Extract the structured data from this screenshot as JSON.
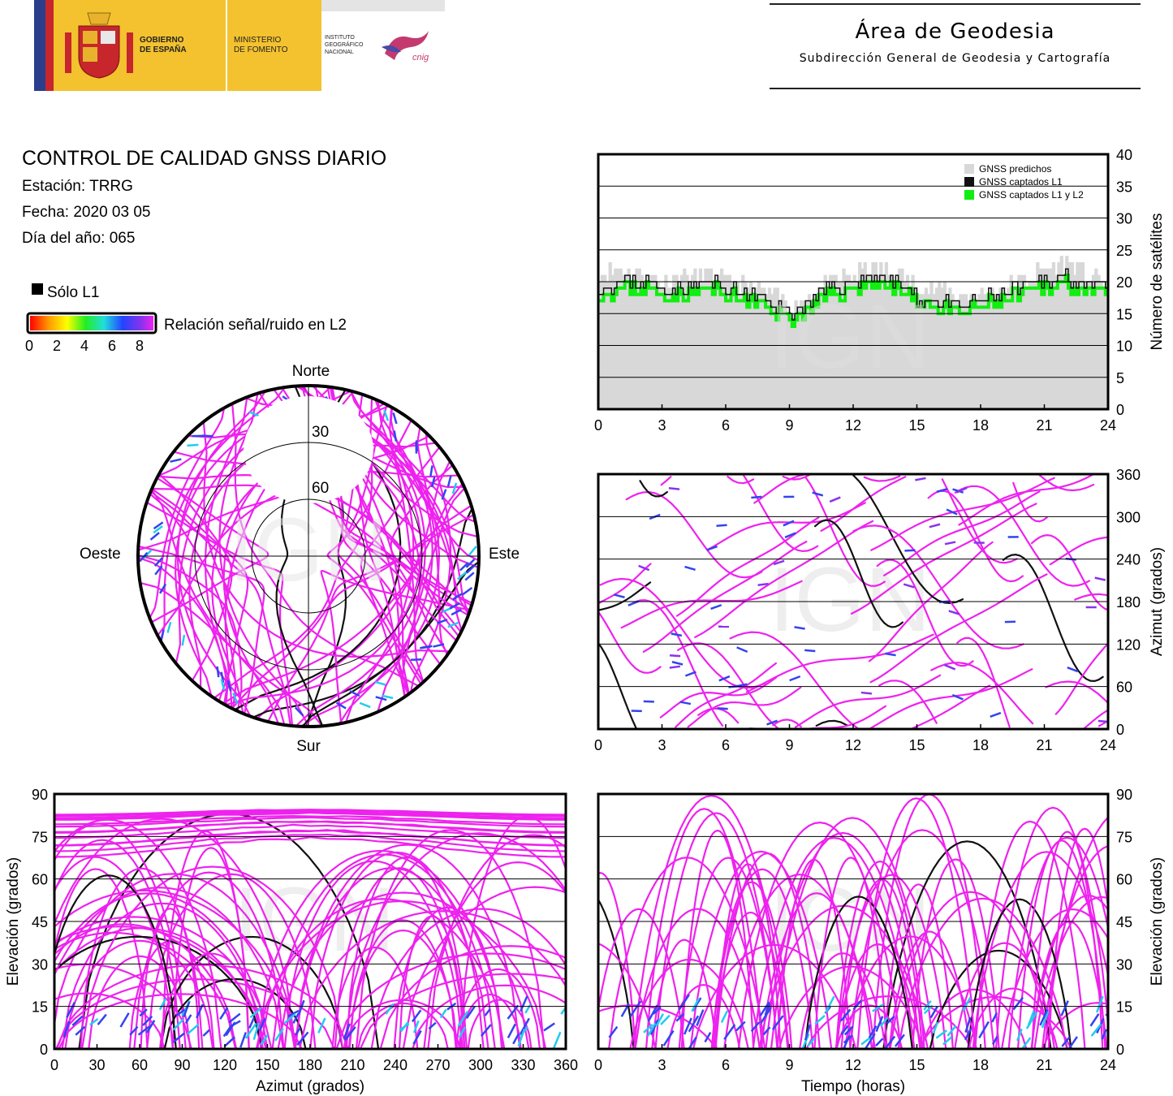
{
  "header": {
    "gov_line1": "GOBIERNO",
    "gov_line2": "DE ESPAÑA",
    "min_line1": "MINISTERIO",
    "min_line2": "DE FOMENTO",
    "ign_line1": "INSTITUTO",
    "ign_line2": "GEOGRÁFICO",
    "ign_line3": "NACIONAL",
    "cnig": "cnig",
    "area_title": "Área de Geodesia",
    "area_subtitle": "Subdirección General de Geodesia y Cartografía"
  },
  "info": {
    "title": "CONTROL DE CALIDAD GNSS DIARIO",
    "station": "Estación: TRRG",
    "date": "Fecha: 2020 03 05",
    "doy": "Día del año: 065"
  },
  "legend": {
    "l1_only": "Sólo L1",
    "snr_label": "Relación señal/ruido en L2",
    "snr_ticks": [
      "0",
      "2",
      "4",
      "6",
      "8"
    ]
  },
  "watermark": "IGN",
  "colors": {
    "magenta": "#ee22ee",
    "blue": "#3344ee",
    "purple": "#8833ee",
    "cyan": "#22ccee",
    "black": "#111111",
    "green": "#11ee11",
    "predicted": "#d8d8d8",
    "plot_bg": "#ffffff"
  },
  "chart_data": [
    {
      "id": "count",
      "type": "area",
      "ylabel": "Número de satélites",
      "xlim": [
        0,
        24
      ],
      "ylim": [
        0,
        40
      ],
      "xticks": [
        "0",
        "3",
        "6",
        "9",
        "12",
        "15",
        "18",
        "21",
        "24"
      ],
      "yticks": [
        "0",
        "5",
        "10",
        "15",
        "20",
        "25",
        "30",
        "35",
        "40"
      ],
      "grid": true,
      "legend_position": "top-right",
      "legend": [
        "GNSS predichos",
        "GNSS captados L1",
        "GNSS captados L1 y L2"
      ],
      "x": [
        0,
        1,
        2,
        3,
        4,
        5,
        6,
        7,
        8,
        9,
        10,
        11,
        12,
        13,
        14,
        15,
        16,
        17,
        18,
        19,
        20,
        21,
        22,
        23,
        24
      ],
      "series": [
        {
          "name": "GNSS predichos",
          "values": [
            21,
            22,
            21,
            20,
            21,
            21,
            20,
            19,
            18,
            16,
            18,
            20,
            21,
            22,
            21,
            19,
            19,
            18,
            18,
            19,
            20,
            22,
            23,
            21,
            20
          ]
        },
        {
          "name": "GNSS captados L1",
          "values": [
            19,
            20,
            20,
            19,
            19,
            20,
            19,
            18,
            17,
            15,
            17,
            19,
            20,
            21,
            20,
            17,
            17,
            16,
            17,
            18,
            19,
            20,
            21,
            19,
            19
          ]
        },
        {
          "name": "GNSS captados L1 y L2",
          "values": [
            18,
            19,
            19,
            18,
            18,
            19,
            18,
            17,
            16,
            14,
            16,
            18,
            19,
            20,
            19,
            17,
            16,
            15,
            16,
            17,
            18,
            19,
            20,
            18,
            18
          ]
        }
      ]
    },
    {
      "id": "azimuth-time",
      "type": "scatter",
      "ylabel": "Azimut (grados)",
      "xlim": [
        0,
        24
      ],
      "ylim": [
        0,
        360
      ],
      "xticks": [
        "0",
        "3",
        "6",
        "9",
        "12",
        "15",
        "18",
        "21",
        "24"
      ],
      "yticks": [
        "0",
        "60",
        "120",
        "180",
        "240",
        "300",
        "360"
      ],
      "grid": true
    },
    {
      "id": "elev-azimuth",
      "type": "scatter",
      "xlabel": "Azimut (grados)",
      "ylabel": "Elevación (grados)",
      "xlim": [
        0,
        360
      ],
      "ylim": [
        0,
        90
      ],
      "xticks": [
        "0",
        "30",
        "60",
        "90",
        "120",
        "150",
        "180",
        "210",
        "240",
        "270",
        "300",
        "330",
        "360"
      ],
      "yticks": [
        "0",
        "15",
        "30",
        "45",
        "60",
        "75",
        "90"
      ],
      "grid": true
    },
    {
      "id": "elev-time",
      "type": "scatter",
      "xlabel": "Tiempo (horas)",
      "ylabel": "Elevación (grados)",
      "xlim": [
        0,
        24
      ],
      "ylim": [
        0,
        90
      ],
      "xticks": [
        "0",
        "3",
        "6",
        "9",
        "12",
        "15",
        "18",
        "21",
        "24"
      ],
      "yticks": [
        "0",
        "15",
        "30",
        "45",
        "60",
        "75",
        "90"
      ],
      "grid": true
    },
    {
      "id": "skyplot",
      "type": "scatter",
      "directions": {
        "north": "Norte",
        "south": "Sur",
        "east": "Este",
        "west": "Oeste"
      },
      "rings": [
        "30",
        "60"
      ]
    }
  ]
}
